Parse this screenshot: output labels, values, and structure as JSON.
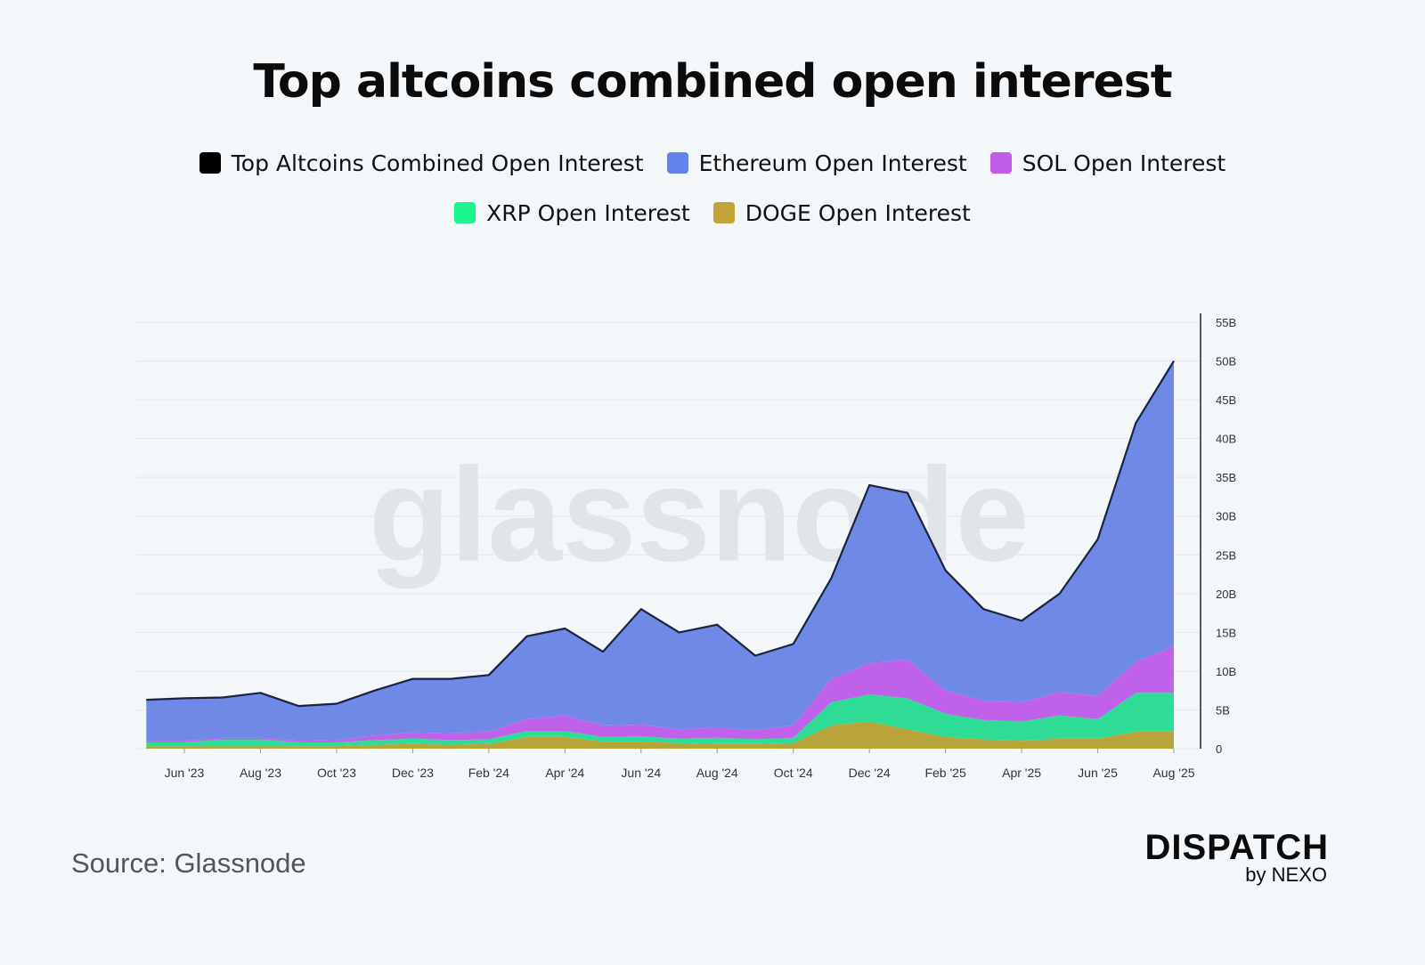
{
  "chart_data": {
    "type": "stacked_area",
    "title": "Top altcoins combined open interest",
    "watermark": "glassnode",
    "source": "Source: Glassnode",
    "brand": "DISPATCH",
    "brand_sub": "by NEXO",
    "x": [
      "2023-05",
      "2023-06",
      "2023-07",
      "2023-08",
      "2023-09",
      "2023-10",
      "2023-11",
      "2023-12",
      "2024-01",
      "2024-02",
      "2024-03",
      "2024-04",
      "2024-05",
      "2024-06",
      "2024-07",
      "2024-08",
      "2024-09",
      "2024-10",
      "2024-11",
      "2024-12",
      "2025-01",
      "2025-02",
      "2025-03",
      "2025-04",
      "2025-05",
      "2025-06",
      "2025-07",
      "2025-08"
    ],
    "xticks": [
      {
        "value": "2023-06",
        "label": "Jun '23"
      },
      {
        "value": "2023-08",
        "label": "Aug '23"
      },
      {
        "value": "2023-10",
        "label": "Oct '23"
      },
      {
        "value": "2023-12",
        "label": "Dec '23"
      },
      {
        "value": "2024-02",
        "label": "Feb '24"
      },
      {
        "value": "2024-04",
        "label": "Apr '24"
      },
      {
        "value": "2024-06",
        "label": "Jun '24"
      },
      {
        "value": "2024-08",
        "label": "Aug '24"
      },
      {
        "value": "2024-10",
        "label": "Oct '24"
      },
      {
        "value": "2024-12",
        "label": "Dec '24"
      },
      {
        "value": "2025-02",
        "label": "Feb '25"
      },
      {
        "value": "2025-04",
        "label": "Apr '25"
      },
      {
        "value": "2025-06",
        "label": "Jun '25"
      },
      {
        "value": "2025-08",
        "label": "Aug '25"
      }
    ],
    "ylim": [
      0,
      55
    ],
    "yticks": [
      0,
      {
        "value": 5,
        "label": "5B"
      },
      {
        "value": 10,
        "label": "10B"
      },
      {
        "value": 15,
        "label": "15B"
      },
      {
        "value": 20,
        "label": "20B"
      },
      {
        "value": 25,
        "label": "25B"
      },
      {
        "value": 30,
        "label": "30B"
      },
      {
        "value": 35,
        "label": "35B"
      },
      {
        "value": 40,
        "label": "40B"
      },
      {
        "value": 45,
        "label": "45B"
      },
      {
        "value": 50,
        "label": "50B"
      },
      {
        "value": 55,
        "label": "55B"
      }
    ],
    "grid": true,
    "series": [
      {
        "name": "Top Altcoins Combined Open Interest",
        "kind": "line",
        "color": "#1b2340",
        "swatch": "#000000",
        "values": [
          6.3,
          6.5,
          6.6,
          7.2,
          5.5,
          5.8,
          7.5,
          9.0,
          9.0,
          9.5,
          14.5,
          15.5,
          12.5,
          18,
          15,
          16,
          12,
          13.5,
          22,
          34,
          33,
          23,
          18,
          16.5,
          20,
          27,
          42,
          50
        ]
      },
      {
        "name": "Ethereum Open Interest",
        "kind": "area",
        "color": "#7089e6",
        "swatch": "#6382ec",
        "values": [
          5.3,
          5.5,
          5.2,
          5.8,
          4.5,
          4.7,
          5.8,
          6.9,
          7.0,
          7.3,
          10.7,
          11.2,
          9.5,
          14.9,
          12.5,
          13.3,
          9.6,
          10.5,
          13,
          23,
          21.5,
          15.5,
          11.8,
          10.5,
          12.7,
          20.2,
          30.8,
          36.8
        ]
      },
      {
        "name": "SOL Open Interest",
        "kind": "area",
        "color": "#c061ea",
        "swatch": "#bf5de8",
        "values": [
          0.2,
          0.2,
          0.2,
          0.2,
          0.2,
          0.3,
          0.6,
          0.8,
          0.9,
          1.0,
          1.5,
          2.0,
          1.5,
          1.5,
          1.2,
          1.3,
          1.2,
          1.6,
          3,
          4,
          5,
          3,
          2.5,
          2.5,
          3,
          3,
          4,
          6
        ]
      },
      {
        "name": "XRP Open Interest",
        "kind": "area",
        "color": "#2fdc96",
        "swatch": "#1ef58e",
        "values": [
          0.5,
          0.5,
          0.9,
          0.9,
          0.5,
          0.5,
          0.6,
          0.7,
          0.6,
          0.6,
          0.8,
          0.8,
          0.6,
          0.7,
          0.6,
          0.8,
          0.6,
          0.7,
          3,
          3.5,
          4,
          3,
          2.5,
          2.5,
          3,
          2.5,
          5,
          5
        ]
      },
      {
        "name": "DOGE Open Interest",
        "kind": "area",
        "color": "#b9a43a",
        "swatch": "#c1a43a",
        "values": [
          0.3,
          0.3,
          0.3,
          0.3,
          0.3,
          0.3,
          0.5,
          0.6,
          0.5,
          0.6,
          1.5,
          1.5,
          0.9,
          0.9,
          0.7,
          0.6,
          0.6,
          0.7,
          3,
          3.5,
          2.5,
          1.5,
          1.2,
          1,
          1.3,
          1.3,
          2.2,
          2.2
        ]
      }
    ]
  }
}
